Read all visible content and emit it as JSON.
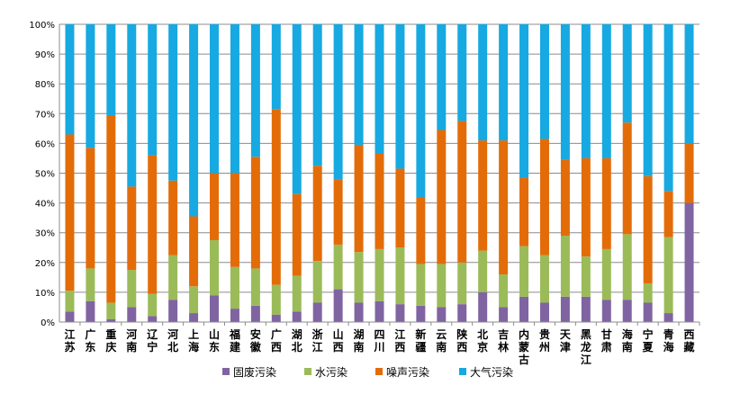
{
  "chart_data": {
    "type": "bar",
    "stacked": "percent",
    "ylim": [
      0,
      100
    ],
    "yticks": [
      "0%",
      "10%",
      "20%",
      "30%",
      "40%",
      "50%",
      "60%",
      "70%",
      "80%",
      "90%",
      "100%"
    ],
    "grid": true,
    "legend_position": "bottom",
    "categories": [
      "江苏",
      "广东",
      "重庆",
      "河南",
      "辽宁",
      "河北",
      "上海",
      "山东",
      "福建",
      "安徽",
      "广西",
      "湖北",
      "浙江",
      "山西",
      "湖南",
      "四川",
      "江西",
      "新疆",
      "云南",
      "陕西",
      "北京",
      "吉林",
      "内蒙古",
      "贵州",
      "天津",
      "黑龙江",
      "甘肃",
      "海南",
      "宁夏",
      "青海",
      "西藏"
    ],
    "series": [
      {
        "name": "固废污染",
        "color": "#8064a2",
        "values": [
          3.5,
          7,
          1,
          5,
          2,
          7.5,
          3,
          9,
          4.5,
          5.5,
          2.5,
          3.5,
          6.5,
          11,
          6.5,
          7,
          6,
          5.5,
          5,
          6,
          10,
          5,
          8.5,
          6.5,
          8.5,
          8.5,
          7.5,
          7.5,
          6.5,
          3,
          40
        ]
      },
      {
        "name": "水污染",
        "color": "#9bbb59",
        "values": [
          7,
          11,
          5.5,
          12.5,
          7.5,
          15,
          9,
          18.5,
          14,
          12.5,
          10,
          12,
          14,
          15,
          17,
          17.5,
          19,
          14,
          14.5,
          14,
          14,
          11,
          17,
          16,
          20.5,
          13.5,
          17,
          22,
          6.5,
          25.5,
          0
        ]
      },
      {
        "name": "噪声污染",
        "color": "#e36c09",
        "values": [
          52.5,
          40.5,
          63,
          28,
          46.5,
          25,
          23.5,
          22.5,
          31.5,
          37.5,
          59,
          27.5,
          32,
          22,
          36,
          32,
          26.5,
          22.5,
          45,
          47.5,
          37,
          45,
          23,
          39,
          25.5,
          33,
          30.5,
          37.5,
          36,
          15.5,
          20
        ]
      },
      {
        "name": "大气污染",
        "color": "#17a9e1",
        "values": [
          37,
          41.5,
          30.5,
          54.5,
          44,
          52.5,
          64.5,
          50,
          50,
          44.5,
          28.5,
          57,
          47.5,
          52,
          40.5,
          43.5,
          48.5,
          58,
          35.5,
          32.5,
          39,
          39,
          51.5,
          38.5,
          45.5,
          45,
          45,
          33,
          51,
          56,
          40
        ]
      }
    ]
  }
}
